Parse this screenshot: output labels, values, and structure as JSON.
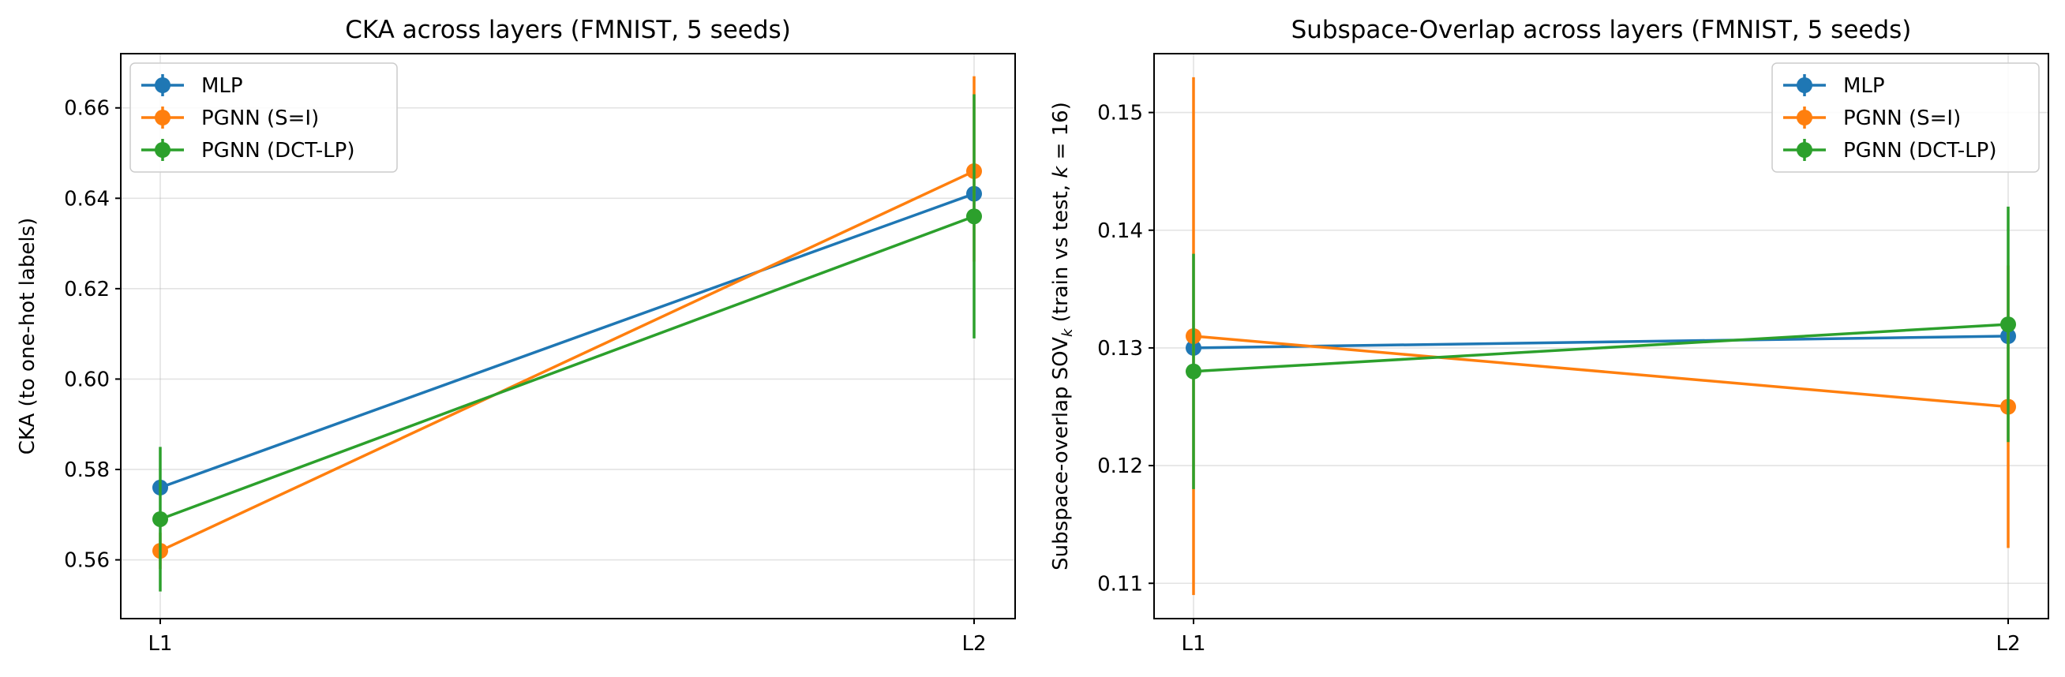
{
  "chart_data": [
    {
      "type": "line",
      "title": "CKA across layers (FMNIST, 5 seeds)",
      "xlabel": "",
      "ylabel": "CKA (to one-hot labels)",
      "categories": [
        "L1",
        "L2"
      ],
      "ylim": [
        0.547,
        0.672
      ],
      "yticks": [
        0.56,
        0.58,
        0.6,
        0.62,
        0.64,
        0.66
      ],
      "ytick_labels": [
        "0.56",
        "0.58",
        "0.60",
        "0.62",
        "0.64",
        "0.66"
      ],
      "grid": true,
      "legend_position": "upper-left",
      "series": [
        {
          "name": "MLP",
          "color": "#1f77b4",
          "values": [
            0.576,
            0.641
          ],
          "err_low": [
            0.576,
            0.641
          ],
          "err_high": [
            0.576,
            0.641
          ]
        },
        {
          "name": "PGNN (S=I)",
          "color": "#ff7f0e",
          "values": [
            0.562,
            0.646
          ],
          "err_low": [
            0.558,
            0.626
          ],
          "err_high": [
            0.566,
            0.667
          ]
        },
        {
          "name": "PGNN (DCT-LP)",
          "color": "#2ca02c",
          "values": [
            0.569,
            0.636
          ],
          "err_low": [
            0.553,
            0.609
          ],
          "err_high": [
            0.585,
            0.663
          ]
        }
      ]
    },
    {
      "type": "line",
      "title": "Subspace-Overlap across layers (FMNIST, 5 seeds)",
      "xlabel": "",
      "ylabel": "Subspace-overlap SOV",
      "ylabel_sub": "k",
      "ylabel_tail": " (train vs test, ",
      "ylabel_k": "k",
      "ylabel_end": " = 16)",
      "categories": [
        "L1",
        "L2"
      ],
      "ylim": [
        0.107,
        0.155
      ],
      "yticks": [
        0.11,
        0.12,
        0.13,
        0.14,
        0.15
      ],
      "ytick_labels": [
        "0.11",
        "0.12",
        "0.13",
        "0.14",
        "0.15"
      ],
      "grid": true,
      "legend_position": "upper-right",
      "series": [
        {
          "name": "MLP",
          "color": "#1f77b4",
          "values": [
            0.13,
            0.131
          ],
          "err_low": [
            0.13,
            0.131
          ],
          "err_high": [
            0.13,
            0.131
          ]
        },
        {
          "name": "PGNN (S=I)",
          "color": "#ff7f0e",
          "values": [
            0.131,
            0.125
          ],
          "err_low": [
            0.109,
            0.113
          ],
          "err_high": [
            0.153,
            0.137
          ]
        },
        {
          "name": "PGNN (DCT-LP)",
          "color": "#2ca02c",
          "values": [
            0.128,
            0.132
          ],
          "err_low": [
            0.118,
            0.122
          ],
          "err_high": [
            0.138,
            0.142
          ]
        }
      ]
    }
  ]
}
